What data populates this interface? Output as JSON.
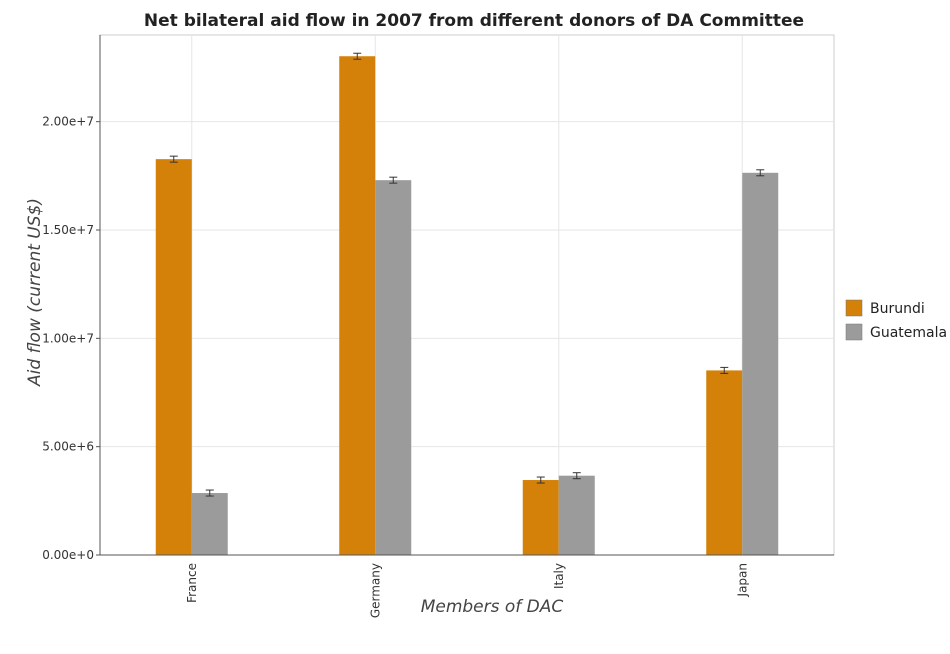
{
  "chart_data": {
    "type": "bar",
    "title": "Net bilateral aid flow in 2007 from different donors of DA Committee",
    "xlabel": "Members of DAC",
    "ylabel": "Aid flow (current US$)",
    "categories": [
      "France",
      "Germany",
      "Italy",
      "Japan"
    ],
    "series": [
      {
        "name": "Burundi",
        "color": "#d4810a",
        "values": [
          18270000,
          23020000,
          3460000,
          8520000
        ]
      },
      {
        "name": "Guatemala",
        "color": "#9b9b9b",
        "values": [
          2860000,
          17300000,
          3660000,
          17640000
        ]
      }
    ],
    "ylim": [
      0,
      24000000
    ],
    "yticks": [
      0,
      5000000,
      10000000,
      15000000,
      20000000
    ],
    "ytick_labels": [
      "0.00e+0",
      "5.00e+6",
      "1.00e+7",
      "1.50e+7",
      "2.00e+7"
    ],
    "grid": true,
    "legend_position": "right"
  }
}
